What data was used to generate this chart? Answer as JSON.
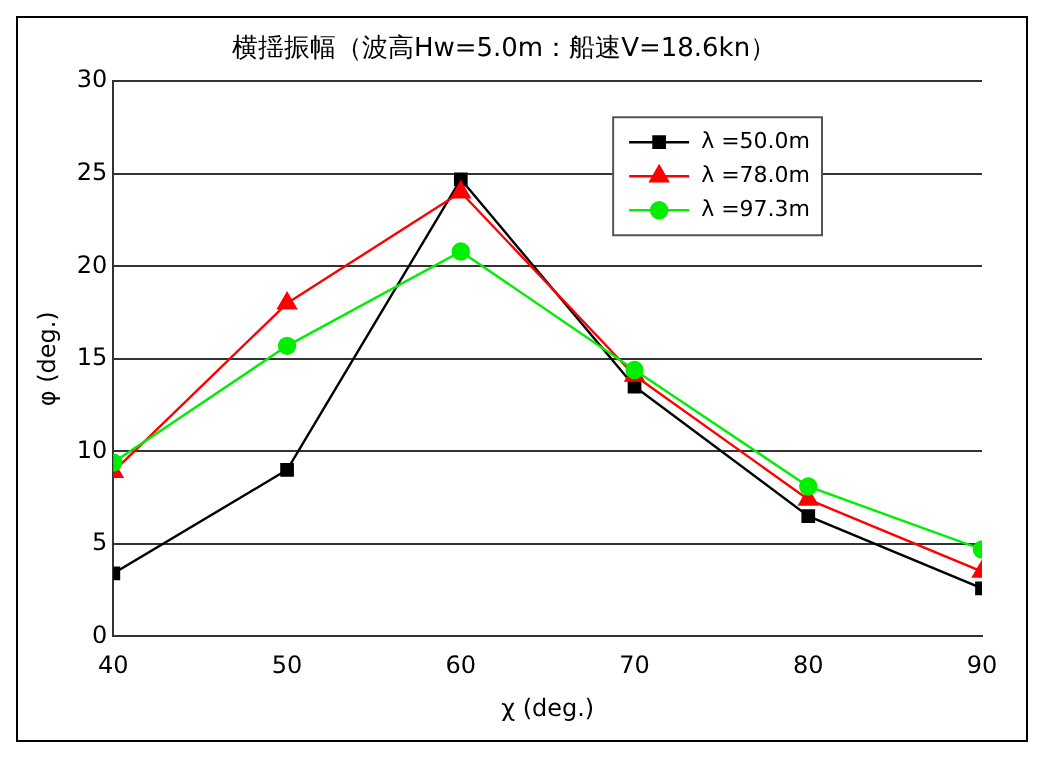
{
  "chart_data": {
    "type": "line",
    "title": "横揺振幅（波高Hw=5.0m：船速V=18.6kn）",
    "xlabel": "χ (deg.)",
    "ylabel": "φ (deg.)",
    "x": [
      40,
      50,
      60,
      70,
      80,
      90
    ],
    "series": [
      {
        "name": "λ =50.0m",
        "color": "#000000",
        "marker": "square",
        "values": [
          3.4,
          9.0,
          24.7,
          13.5,
          6.5,
          2.6
        ]
      },
      {
        "name": "λ =78.0m",
        "color": "#ff0000",
        "marker": "triangle",
        "values": [
          8.9,
          18.0,
          24.0,
          14.1,
          7.4,
          3.5
        ]
      },
      {
        "name": "λ =97.3m",
        "color": "#00ee00",
        "marker": "circle",
        "values": [
          9.4,
          15.7,
          20.8,
          14.4,
          8.1,
          4.7
        ]
      }
    ],
    "xlim": [
      40,
      90
    ],
    "xticks": [
      40,
      50,
      60,
      70,
      80,
      90
    ],
    "ylim": [
      0,
      30
    ],
    "yticks": [
      0,
      5,
      10,
      15,
      20,
      25,
      30
    ],
    "grid": "y",
    "legend": "top right",
    "line_style": "solid"
  }
}
